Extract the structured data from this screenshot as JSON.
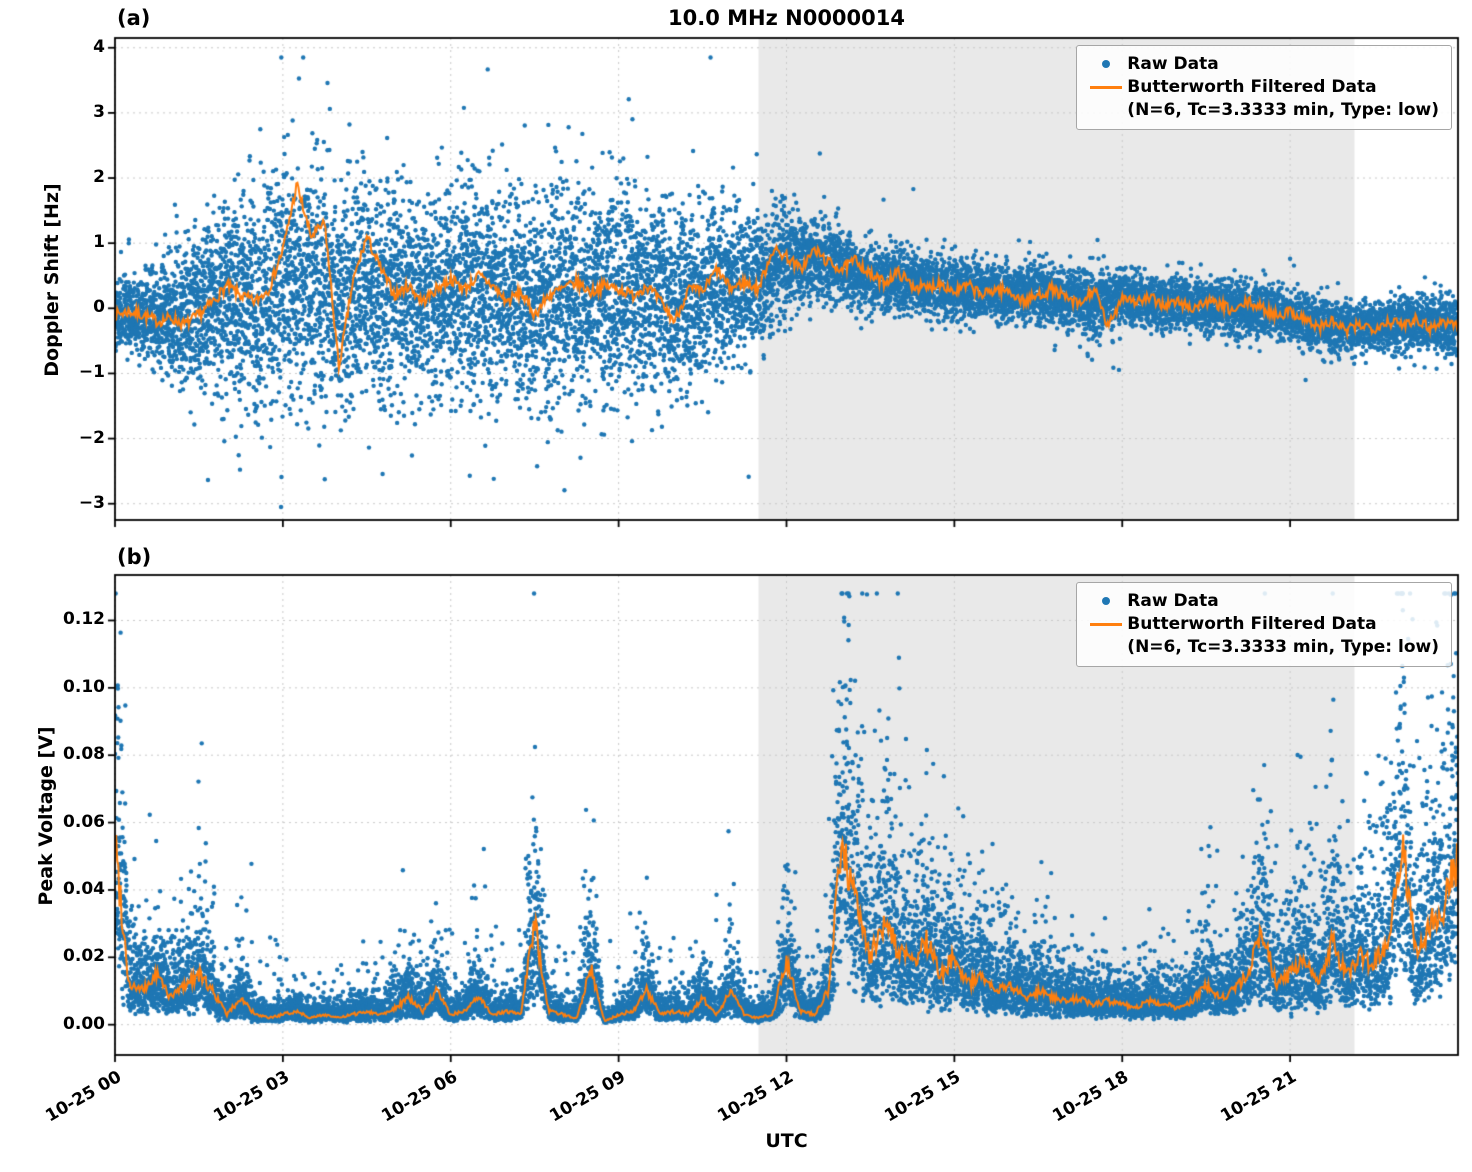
{
  "figure": {
    "title": "10.0 MHz N0000014",
    "xlabel": "UTC",
    "panel_a_label": "(a)",
    "panel_b_label": "(b)",
    "legend": {
      "raw_label": "Raw Data",
      "filtered_label": "Butterworth Filtered Data",
      "filtered_sublabel": "(N=6, Tc=3.3333 min, Type: low)"
    },
    "colors": {
      "raw": "#1f77b4",
      "filtered": "#ff7f0e",
      "shaded": "#e9e9e9",
      "grid": "#c9c9c9",
      "axis": "#000000"
    }
  },
  "chart_data": [
    {
      "type": "scatter",
      "panel": "a",
      "title": "10.0 MHz N0000014",
      "xlabel": "UTC",
      "ylabel": "Doppler Shift [Hz]",
      "x_axis_date": "10-25",
      "xlim_hours": [
        0,
        24
      ],
      "ylim": [
        -3.25,
        4.15
      ],
      "y_tick_values": [
        4,
        3,
        2,
        1,
        0,
        -1,
        -2,
        -3
      ],
      "y_tick_labels": [
        "4",
        "3",
        "2",
        "1",
        "0",
        "−1",
        "−2",
        "−3"
      ],
      "x_tick_hours": [
        0,
        3,
        6,
        9,
        12,
        15,
        18,
        21
      ],
      "x_tick_labels": [
        "10-25 00",
        "10-25 03",
        "10-25 06",
        "10-25 09",
        "10-25 12",
        "10-25 15",
        "10-25 18",
        "10-25 21"
      ],
      "grid": true,
      "legend_position": "upper right",
      "shaded_region_hours": [
        11.5,
        22.15
      ],
      "series": [
        {
          "name": "Raw Data",
          "type": "scatter",
          "color": "#1f77b4",
          "envelope_t_start": 0,
          "envelope_t_step": 0.5,
          "envelope_center": [
            -0.1,
            -0.1,
            -0.15,
            0.0,
            0.15,
            0.15,
            0.4,
            0.5,
            0.1,
            0.3,
            0.2,
            0.2,
            0.3,
            0.35,
            0.15,
            0.1,
            0.3,
            0.3,
            0.25,
            0.2,
            0.1,
            0.25,
            0.3,
            0.45,
            0.7,
            0.75,
            0.6,
            0.45,
            0.45,
            0.35,
            0.3,
            0.25,
            0.2,
            0.25,
            0.15,
            0.1,
            0.15,
            0.1,
            0.05,
            0.05,
            0.0,
            -0.05,
            -0.1,
            -0.25,
            -0.3,
            -0.25,
            -0.25,
            -0.25,
            -0.25
          ],
          "envelope_spread": [
            0.4,
            0.5,
            0.8,
            1.0,
            1.2,
            1.3,
            1.4,
            1.5,
            1.5,
            1.4,
            1.3,
            1.2,
            1.3,
            1.4,
            1.2,
            1.3,
            1.4,
            1.3,
            1.3,
            1.2,
            1.2,
            1.1,
            1.0,
            0.9,
            0.7,
            0.5,
            0.45,
            0.4,
            0.4,
            0.35,
            0.4,
            0.35,
            0.35,
            0.4,
            0.35,
            0.5,
            0.35,
            0.3,
            0.35,
            0.3,
            0.35,
            0.3,
            0.3,
            0.35,
            0.3,
            0.3,
            0.35,
            0.35,
            0.4
          ]
        },
        {
          "name": "Butterworth Filtered Data (N=6, Tc=3.3333 min, Type: low)",
          "type": "line",
          "color": "#ff7f0e",
          "t_start": 0,
          "t_step": 0.25,
          "values": [
            -0.1,
            -0.05,
            -0.1,
            -0.2,
            -0.15,
            -0.25,
            -0.1,
            0.1,
            0.35,
            0.2,
            0.1,
            0.3,
            0.9,
            1.9,
            1.1,
            1.3,
            -0.9,
            0.4,
            1.1,
            0.6,
            0.2,
            0.35,
            0.1,
            0.3,
            0.45,
            0.3,
            0.5,
            0.35,
            0.1,
            0.25,
            -0.1,
            0.2,
            0.3,
            0.4,
            0.25,
            0.35,
            0.3,
            0.2,
            0.35,
            0.1,
            -0.2,
            0.3,
            0.25,
            0.6,
            0.3,
            0.4,
            0.3,
            0.9,
            0.8,
            0.6,
            0.9,
            0.7,
            0.6,
            0.75,
            0.5,
            0.4,
            0.55,
            0.35,
            0.3,
            0.4,
            0.25,
            0.35,
            0.2,
            0.3,
            0.25,
            0.1,
            0.2,
            0.3,
            0.15,
            0.05,
            0.3,
            -0.3,
            0.2,
            0.1,
            0.15,
            0.05,
            0.1,
            0.0,
            0.1,
            0.05,
            -0.05,
            0.1,
            0.0,
            -0.1,
            -0.05,
            -0.15,
            -0.3,
            -0.2,
            -0.35,
            -0.25,
            -0.3,
            -0.2,
            -0.25,
            -0.15,
            -0.3,
            -0.2,
            -0.25
          ]
        }
      ]
    },
    {
      "type": "scatter",
      "panel": "b",
      "title": "",
      "xlabel": "UTC",
      "ylabel": "Peak Voltage [V]",
      "x_axis_date": "10-25",
      "xlim_hours": [
        0,
        24
      ],
      "ylim": [
        -0.009,
        0.1335
      ],
      "y_tick_values": [
        0.12,
        0.1,
        0.08,
        0.06,
        0.04,
        0.02,
        0.0
      ],
      "y_tick_labels": [
        "0.12",
        "0.10",
        "0.08",
        "0.06",
        "0.04",
        "0.02",
        "0.00"
      ],
      "x_tick_hours": [
        0,
        3,
        6,
        9,
        12,
        15,
        18,
        21
      ],
      "x_tick_labels": [
        "10-25 00",
        "10-25 03",
        "10-25 06",
        "10-25 09",
        "10-25 12",
        "10-25 15",
        "10-25 18",
        "10-25 21"
      ],
      "grid": true,
      "legend_position": "upper right",
      "shaded_region_hours": [
        11.5,
        22.15
      ],
      "series": [
        {
          "name": "Raw Data",
          "type": "scatter",
          "color": "#1f77b4",
          "baseline_t_start": 0,
          "baseline_t_step": 0.25,
          "baseline": [
            0.055,
            0.012,
            0.01,
            0.015,
            0.008,
            0.012,
            0.015,
            0.01,
            0.003,
            0.008,
            0.003,
            0.002,
            0.003,
            0.004,
            0.002,
            0.003,
            0.002,
            0.003,
            0.004,
            0.003,
            0.005,
            0.008,
            0.004,
            0.01,
            0.003,
            0.004,
            0.008,
            0.003,
            0.004,
            0.003,
            0.03,
            0.004,
            0.003,
            0.002,
            0.017,
            0.001,
            0.003,
            0.004,
            0.01,
            0.003,
            0.004,
            0.003,
            0.008,
            0.003,
            0.01,
            0.003,
            0.002,
            0.003,
            0.02,
            0.004,
            0.003,
            0.01,
            0.055,
            0.035,
            0.02,
            0.03,
            0.022,
            0.018,
            0.025,
            0.015,
            0.02,
            0.012,
            0.015,
            0.01,
            0.012,
            0.008,
            0.01,
            0.008,
            0.007,
            0.008,
            0.006,
            0.007,
            0.006,
            0.005,
            0.007,
            0.006,
            0.005,
            0.007,
            0.012,
            0.008,
            0.01,
            0.015,
            0.028,
            0.012,
            0.015,
            0.02,
            0.012,
            0.025,
            0.015,
            0.02,
            0.018,
            0.025,
            0.055,
            0.02,
            0.03,
            0.035,
            0.05
          ],
          "peak_t_start": 0,
          "peak_t_step": 0.5,
          "peak_envelope": [
            0.105,
            0.035,
            0.03,
            0.075,
            0.03,
            0.055,
            0.02,
            0.015,
            0.02,
            0.03,
            0.025,
            0.03,
            0.035,
            0.067,
            0.02,
            0.065,
            0.02,
            0.035,
            0.03,
            0.035,
            0.02,
            0.028,
            0.062,
            0.015,
            0.032,
            0.02,
            0.1,
            0.075,
            0.065,
            0.055,
            0.04,
            0.03,
            0.03,
            0.025,
            0.032,
            0.02,
            0.018,
            0.02,
            0.025,
            0.06,
            0.035,
            0.045,
            0.04,
            0.055,
            0.045,
            0.06,
            0.095,
            0.09,
            0.125
          ]
        },
        {
          "name": "Butterworth Filtered Data (N=6, Tc=3.3333 min, Type: low)",
          "type": "line",
          "color": "#ff7f0e",
          "t_start": 0,
          "t_step": 0.25,
          "values": [
            0.055,
            0.012,
            0.01,
            0.015,
            0.008,
            0.012,
            0.015,
            0.01,
            0.003,
            0.008,
            0.003,
            0.002,
            0.003,
            0.004,
            0.002,
            0.003,
            0.002,
            0.003,
            0.004,
            0.003,
            0.005,
            0.008,
            0.004,
            0.01,
            0.003,
            0.004,
            0.008,
            0.003,
            0.004,
            0.003,
            0.03,
            0.004,
            0.003,
            0.002,
            0.017,
            0.001,
            0.003,
            0.004,
            0.01,
            0.003,
            0.004,
            0.003,
            0.008,
            0.003,
            0.01,
            0.003,
            0.002,
            0.003,
            0.02,
            0.004,
            0.003,
            0.01,
            0.055,
            0.035,
            0.02,
            0.03,
            0.022,
            0.018,
            0.025,
            0.015,
            0.02,
            0.012,
            0.015,
            0.01,
            0.012,
            0.008,
            0.01,
            0.008,
            0.007,
            0.008,
            0.006,
            0.007,
            0.006,
            0.005,
            0.007,
            0.006,
            0.005,
            0.007,
            0.012,
            0.008,
            0.01,
            0.015,
            0.028,
            0.012,
            0.015,
            0.02,
            0.012,
            0.025,
            0.015,
            0.02,
            0.018,
            0.025,
            0.055,
            0.02,
            0.03,
            0.035,
            0.05
          ]
        }
      ]
    }
  ]
}
